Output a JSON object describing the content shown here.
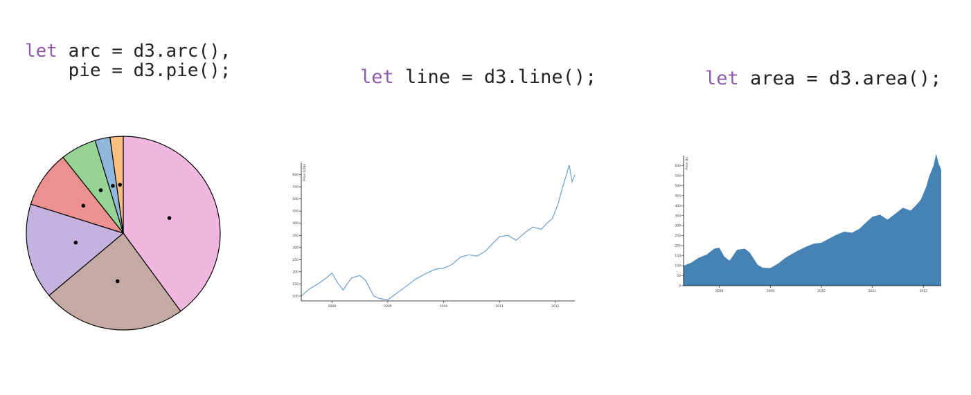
{
  "code": {
    "arc_block": {
      "line1_kw": "let",
      "line1_rest": " arc = d3.arc(),",
      "line2": "    pie = d3.pie();"
    },
    "line_block": {
      "kw": "let",
      "rest": " line = d3.line();"
    },
    "area_block": {
      "kw": "let",
      "rest": " area = d3.area();"
    }
  },
  "chart_data": [
    {
      "type": "pie",
      "slices": [
        {
          "value": 40,
          "color": "#f0b8e0"
        },
        {
          "value": 24,
          "color": "#c4aaa2"
        },
        {
          "value": 16,
          "color": "#c6b2de"
        },
        {
          "value": 9.5,
          "color": "#ec9090"
        },
        {
          "value": 6,
          "color": "#96d495"
        },
        {
          "value": 2.5,
          "color": "#8fb8dc"
        },
        {
          "value": 2.2,
          "color": "#fdbf80"
        }
      ]
    },
    {
      "type": "line",
      "ylabel": "Price (US$)",
      "color": "#6a9fcf",
      "xlim": [
        2007.45,
        2012.35
      ],
      "ylim": [
        80,
        650
      ],
      "xticks": [
        "2008",
        "2009",
        "2010",
        "2011",
        "2012"
      ],
      "yticks": [
        "100",
        "150",
        "200",
        "250",
        "300",
        "350",
        "400",
        "450",
        "500",
        "550",
        "600"
      ],
      "series": [
        {
          "x": [
            2007.45,
            2007.6,
            2007.75,
            2007.9,
            2008.0,
            2008.1,
            2008.2,
            2008.35,
            2008.5,
            2008.6,
            2008.75,
            2008.85,
            2009.0,
            2009.15,
            2009.3,
            2009.5,
            2009.7,
            2009.85,
            2010.0,
            2010.15,
            2010.3,
            2010.45,
            2010.6,
            2010.75,
            2010.85,
            2011.0,
            2011.15,
            2011.3,
            2011.45,
            2011.6,
            2011.75,
            2011.85,
            2011.95,
            2012.05,
            2012.12,
            2012.2,
            2012.25,
            2012.3,
            2012.35
          ],
          "y": [
            100,
            130,
            150,
            175,
            195,
            155,
            125,
            175,
            185,
            165,
            100,
            90,
            85,
            110,
            135,
            170,
            195,
            210,
            215,
            230,
            260,
            270,
            265,
            285,
            310,
            345,
            350,
            330,
            360,
            385,
            375,
            400,
            420,
            480,
            540,
            600,
            640,
            570,
            600
          ]
        }
      ]
    },
    {
      "type": "area",
      "ylabel": "Price ($)",
      "color": "#4682b4",
      "xlim": [
        2007.3,
        2012.35
      ],
      "ylim": [
        0,
        650
      ],
      "xticks": [
        "2008",
        "2009",
        "2010",
        "2011",
        "2012"
      ],
      "yticks": [
        "0",
        "50",
        "100",
        "150",
        "200",
        "250",
        "300",
        "350",
        "400",
        "450",
        "500",
        "550",
        "600"
      ],
      "series": [
        {
          "x": [
            2007.3,
            2007.45,
            2007.6,
            2007.75,
            2007.9,
            2008.0,
            2008.1,
            2008.2,
            2008.35,
            2008.5,
            2008.6,
            2008.75,
            2008.85,
            2009.0,
            2009.15,
            2009.3,
            2009.5,
            2009.7,
            2009.85,
            2010.0,
            2010.15,
            2010.3,
            2010.45,
            2010.6,
            2010.75,
            2010.85,
            2011.0,
            2011.15,
            2011.3,
            2011.45,
            2011.6,
            2011.75,
            2011.85,
            2011.95,
            2012.05,
            2012.12,
            2012.2,
            2012.25,
            2012.3,
            2012.35
          ],
          "y": [
            100,
            115,
            140,
            155,
            185,
            190,
            145,
            125,
            180,
            185,
            165,
            105,
            90,
            88,
            110,
            140,
            170,
            195,
            210,
            215,
            235,
            255,
            270,
            265,
            285,
            310,
            345,
            355,
            330,
            360,
            390,
            375,
            400,
            430,
            490,
            550,
            600,
            660,
            610,
            580
          ]
        }
      ]
    }
  ]
}
